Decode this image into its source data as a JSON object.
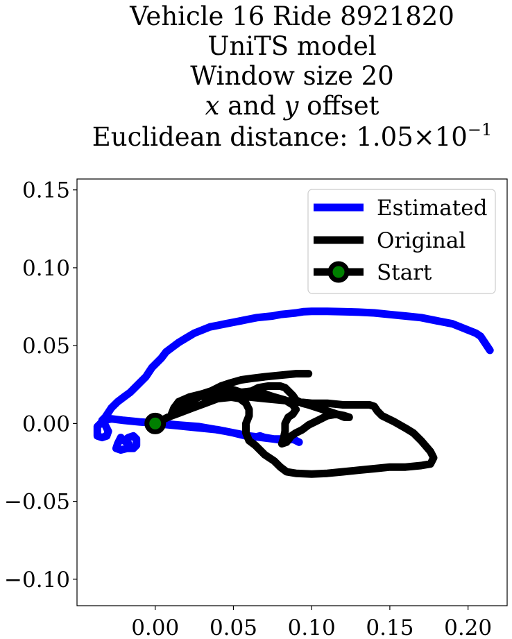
{
  "chart_data": {
    "type": "line",
    "title_lines": [
      "Vehicle 16 Ride 8921820",
      "UniTS model",
      "Window size 20",
      "x and y offset",
      "Euclidean distance: 1.05×10^−1"
    ],
    "xlabel": "",
    "ylabel": "",
    "xlim": [
      -0.05,
      0.225
    ],
    "ylim": [
      -0.117,
      0.157
    ],
    "x_ticks": [
      0.0,
      0.05,
      0.1,
      0.15,
      0.2
    ],
    "x_tick_labels": [
      "0.00",
      "0.05",
      "0.10",
      "0.15",
      "0.20"
    ],
    "y_ticks": [
      -0.1,
      -0.05,
      0.0,
      0.05,
      0.1,
      0.15
    ],
    "y_tick_labels": [
      "−0.10",
      "−0.05",
      "0.00",
      "0.05",
      "0.10",
      "0.15"
    ],
    "grid": false,
    "legend": {
      "placement": "upper right",
      "entries": [
        "Estimated",
        "Original",
        "Start"
      ]
    },
    "series": [
      {
        "name": "Estimated",
        "color": "#0000ff",
        "points": [
          [
            0.0,
            0.0
          ],
          [
            0.01,
            -0.001
          ],
          [
            0.02,
            -0.002
          ],
          [
            0.03,
            -0.003
          ],
          [
            0.04,
            -0.004
          ],
          [
            0.05,
            -0.006
          ],
          [
            0.058,
            -0.008
          ],
          [
            0.063,
            -0.009
          ],
          [
            0.067,
            -0.008
          ],
          [
            0.07,
            -0.009
          ],
          [
            0.076,
            -0.01
          ],
          [
            0.083,
            -0.011
          ],
          [
            0.088,
            -0.01
          ],
          [
            0.092,
            -0.012
          ],
          [
            0.088,
            -0.01
          ],
          [
            0.076,
            -0.01
          ],
          [
            0.06,
            -0.008
          ],
          [
            0.045,
            -0.005
          ],
          [
            0.028,
            -0.002
          ],
          [
            0.015,
            -0.001
          ],
          [
            0.004,
            0.0
          ],
          [
            -0.01,
            0.001
          ],
          [
            -0.02,
            0.002
          ],
          [
            -0.028,
            0.003
          ],
          [
            -0.033,
            0.002
          ],
          [
            -0.037,
            -0.002
          ],
          [
            -0.037,
            -0.008
          ],
          [
            -0.034,
            -0.009
          ],
          [
            -0.031,
            -0.008
          ],
          [
            -0.03,
            -0.005
          ],
          [
            -0.032,
            -0.001
          ],
          [
            -0.034,
            0.002
          ],
          [
            -0.032,
            0.004
          ],
          [
            -0.03,
            0.007
          ],
          [
            -0.028,
            0.01
          ],
          [
            -0.024,
            0.014
          ],
          [
            -0.02,
            0.017
          ],
          [
            -0.016,
            0.02
          ],
          [
            -0.013,
            0.023
          ],
          [
            -0.009,
            0.027
          ],
          [
            -0.006,
            0.03
          ],
          [
            -0.004,
            0.033
          ],
          [
            -0.002,
            0.036
          ],
          [
            0.0,
            0.038
          ],
          [
            0.004,
            0.042
          ],
          [
            0.007,
            0.046
          ],
          [
            0.011,
            0.049
          ],
          [
            0.015,
            0.052
          ],
          [
            0.02,
            0.055
          ],
          [
            0.025,
            0.058
          ],
          [
            0.03,
            0.06
          ],
          [
            0.035,
            0.062
          ],
          [
            0.04,
            0.063
          ],
          [
            0.045,
            0.064
          ],
          [
            0.05,
            0.065
          ],
          [
            0.055,
            0.066
          ],
          [
            0.06,
            0.067
          ],
          [
            0.065,
            0.068
          ],
          [
            0.07,
            0.0685
          ],
          [
            0.075,
            0.069
          ],
          [
            0.08,
            0.07
          ],
          [
            0.085,
            0.0705
          ],
          [
            0.09,
            0.071
          ],
          [
            0.095,
            0.0718
          ],
          [
            0.1,
            0.072
          ],
          [
            0.11,
            0.072
          ],
          [
            0.12,
            0.0718
          ],
          [
            0.13,
            0.0715
          ],
          [
            0.14,
            0.071
          ],
          [
            0.15,
            0.07
          ],
          [
            0.16,
            0.069
          ],
          [
            0.17,
            0.068
          ],
          [
            0.18,
            0.066
          ],
          [
            0.19,
            0.064
          ],
          [
            0.195,
            0.062
          ],
          [
            0.2,
            0.06
          ],
          [
            0.205,
            0.058
          ],
          [
            0.208,
            0.056
          ],
          [
            0.21,
            0.053
          ],
          [
            0.212,
            0.05
          ],
          [
            0.214,
            0.047
          ]
        ],
        "extra_points": [
          [
            -0.022,
            -0.009
          ],
          [
            -0.024,
            -0.013
          ],
          [
            -0.025,
            -0.016
          ],
          [
            -0.022,
            -0.017
          ],
          [
            -0.018,
            -0.016
          ],
          [
            -0.017,
            -0.013
          ],
          [
            -0.02,
            -0.011
          ],
          [
            -0.017,
            -0.009
          ],
          [
            -0.014,
            -0.008
          ],
          [
            -0.012,
            -0.01
          ],
          [
            -0.012,
            -0.014
          ],
          [
            -0.014,
            -0.016
          ],
          [
            -0.018,
            -0.016
          ]
        ]
      },
      {
        "name": "Original",
        "color": "#000000",
        "points": [
          [
            0.0,
            0.0
          ],
          [
            0.008,
            0.004
          ],
          [
            0.016,
            0.007
          ],
          [
            0.024,
            0.01
          ],
          [
            0.032,
            0.013
          ],
          [
            0.04,
            0.016
          ],
          [
            0.048,
            0.017
          ],
          [
            0.054,
            0.016
          ],
          [
            0.058,
            0.013
          ],
          [
            0.06,
            0.009
          ],
          [
            0.06,
            0.005
          ],
          [
            0.058,
            0.0
          ],
          [
            0.058,
            -0.006
          ],
          [
            0.06,
            -0.011
          ],
          [
            0.064,
            -0.014
          ],
          [
            0.07,
            -0.02
          ],
          [
            0.076,
            -0.024
          ],
          [
            0.08,
            -0.028
          ],
          [
            0.084,
            -0.031
          ],
          [
            0.09,
            -0.032
          ],
          [
            0.1,
            -0.0325
          ],
          [
            0.11,
            -0.032
          ],
          [
            0.12,
            -0.031
          ],
          [
            0.13,
            -0.03
          ],
          [
            0.14,
            -0.029
          ],
          [
            0.15,
            -0.028
          ],
          [
            0.16,
            -0.028
          ],
          [
            0.17,
            -0.027
          ],
          [
            0.176,
            -0.026
          ],
          [
            0.178,
            -0.022
          ],
          [
            0.176,
            -0.018
          ],
          [
            0.17,
            -0.011
          ],
          [
            0.165,
            -0.006
          ],
          [
            0.16,
            -0.003
          ],
          [
            0.153,
            0.001
          ],
          [
            0.145,
            0.005
          ],
          [
            0.142,
            0.008
          ],
          [
            0.14,
            0.011
          ],
          [
            0.137,
            0.012
          ],
          [
            0.13,
            0.012
          ],
          [
            0.12,
            0.012
          ],
          [
            0.11,
            0.013
          ],
          [
            0.1,
            0.013
          ],
          [
            0.09,
            0.014
          ],
          [
            0.08,
            0.015
          ],
          [
            0.07,
            0.016
          ],
          [
            0.06,
            0.017
          ],
          [
            0.05,
            0.017
          ],
          [
            0.04,
            0.016
          ],
          [
            0.032,
            0.016
          ],
          [
            0.034,
            0.018
          ],
          [
            0.044,
            0.02
          ],
          [
            0.055,
            0.02
          ],
          [
            0.063,
            0.021
          ],
          [
            0.07,
            0.019
          ],
          [
            0.076,
            0.017
          ],
          [
            0.083,
            0.015
          ],
          [
            0.088,
            0.012
          ],
          [
            0.09,
            0.009
          ],
          [
            0.088,
            0.006
          ],
          [
            0.085,
            0.004
          ],
          [
            0.083,
            0.0
          ],
          [
            0.083,
            -0.005
          ],
          [
            0.082,
            -0.01
          ],
          [
            0.081,
            -0.013
          ],
          [
            0.084,
            -0.012
          ],
          [
            0.087,
            -0.008
          ],
          [
            0.09,
            -0.006
          ],
          [
            0.094,
            -0.004
          ],
          [
            0.098,
            -0.001
          ],
          [
            0.104,
            0.002
          ],
          [
            0.11,
            0.005
          ],
          [
            0.116,
            0.006
          ],
          [
            0.121,
            0.005
          ],
          [
            0.124,
            0.004
          ],
          [
            0.121,
            0.004
          ],
          [
            0.116,
            0.006
          ],
          [
            0.11,
            0.008
          ],
          [
            0.104,
            0.01
          ],
          [
            0.098,
            0.012
          ],
          [
            0.094,
            0.013
          ],
          [
            0.09,
            0.015
          ],
          [
            0.088,
            0.018
          ],
          [
            0.085,
            0.021
          ],
          [
            0.083,
            0.023
          ],
          [
            0.08,
            0.024
          ],
          [
            0.072,
            0.024
          ],
          [
            0.066,
            0.023
          ],
          [
            0.062,
            0.021
          ],
          [
            0.058,
            0.019
          ],
          [
            0.052,
            0.021
          ],
          [
            0.045,
            0.023
          ],
          [
            0.036,
            0.02
          ],
          [
            0.028,
            0.017
          ],
          [
            0.022,
            0.014
          ],
          [
            0.016,
            0.011
          ],
          [
            0.012,
            0.008
          ],
          [
            0.01,
            0.005
          ],
          [
            0.012,
            0.01
          ],
          [
            0.015,
            0.014
          ],
          [
            0.022,
            0.017
          ],
          [
            0.03,
            0.019
          ],
          [
            0.036,
            0.021
          ],
          [
            0.042,
            0.024
          ],
          [
            0.048,
            0.026
          ],
          [
            0.055,
            0.028
          ],
          [
            0.062,
            0.029
          ],
          [
            0.07,
            0.03
          ],
          [
            0.08,
            0.031
          ],
          [
            0.09,
            0.032
          ],
          [
            0.098,
            0.032
          ]
        ]
      }
    ],
    "start_point": {
      "label": "Start",
      "x": 0.0,
      "y": 0.0,
      "marker_color": "#008000",
      "edge_color": "#000000"
    }
  }
}
